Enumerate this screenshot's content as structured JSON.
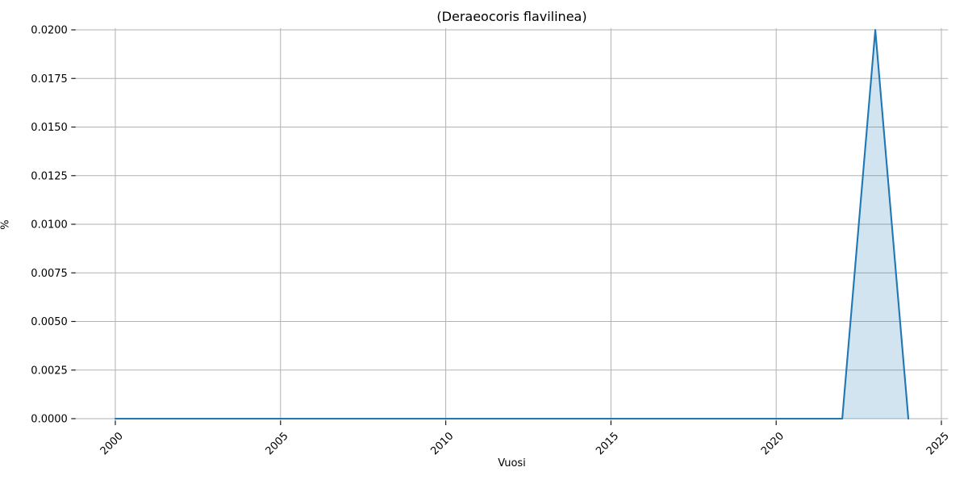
{
  "chart_data": {
    "type": "area",
    "title": "(Deraeocoris flavilinea)",
    "xlabel": "Vuosi",
    "ylabel": "%",
    "x": [
      2000,
      2001,
      2002,
      2003,
      2004,
      2005,
      2006,
      2007,
      2008,
      2009,
      2010,
      2011,
      2012,
      2013,
      2014,
      2015,
      2016,
      2017,
      2018,
      2019,
      2020,
      2021,
      2022,
      2023,
      2024
    ],
    "y": [
      0,
      0,
      0,
      0,
      0,
      0,
      0,
      0,
      0,
      0,
      0,
      0,
      0,
      0,
      0,
      0,
      0,
      0,
      0,
      0,
      0,
      0,
      0,
      0.02,
      0
    ],
    "xlim": [
      1998.8,
      2025.2
    ],
    "ylim": [
      0,
      0.0202
    ],
    "xticks": {
      "values": [
        2000,
        2005,
        2010,
        2015,
        2020,
        2025
      ],
      "labels": [
        "2000",
        "2005",
        "2010",
        "2015",
        "2020",
        "2025"
      ],
      "rotation_deg": 45
    },
    "yticks": {
      "values": [
        0,
        0.0025,
        0.005,
        0.0075,
        0.01,
        0.0125,
        0.015,
        0.0175,
        0.02
      ],
      "labels": [
        "0.0000",
        "0.0025",
        "0.0050",
        "0.0075",
        "0.0100",
        "0.0125",
        "0.0150",
        "0.0175",
        "0.0200"
      ]
    },
    "grid": true,
    "legend": null,
    "colors": {
      "line": "#1f77b4",
      "fill": "#1f77b4",
      "fill_opacity": 0.2,
      "grid": "#b2b2b2",
      "tick": "#1a1a1a",
      "text": "#000000",
      "background": "#ffffff"
    }
  }
}
